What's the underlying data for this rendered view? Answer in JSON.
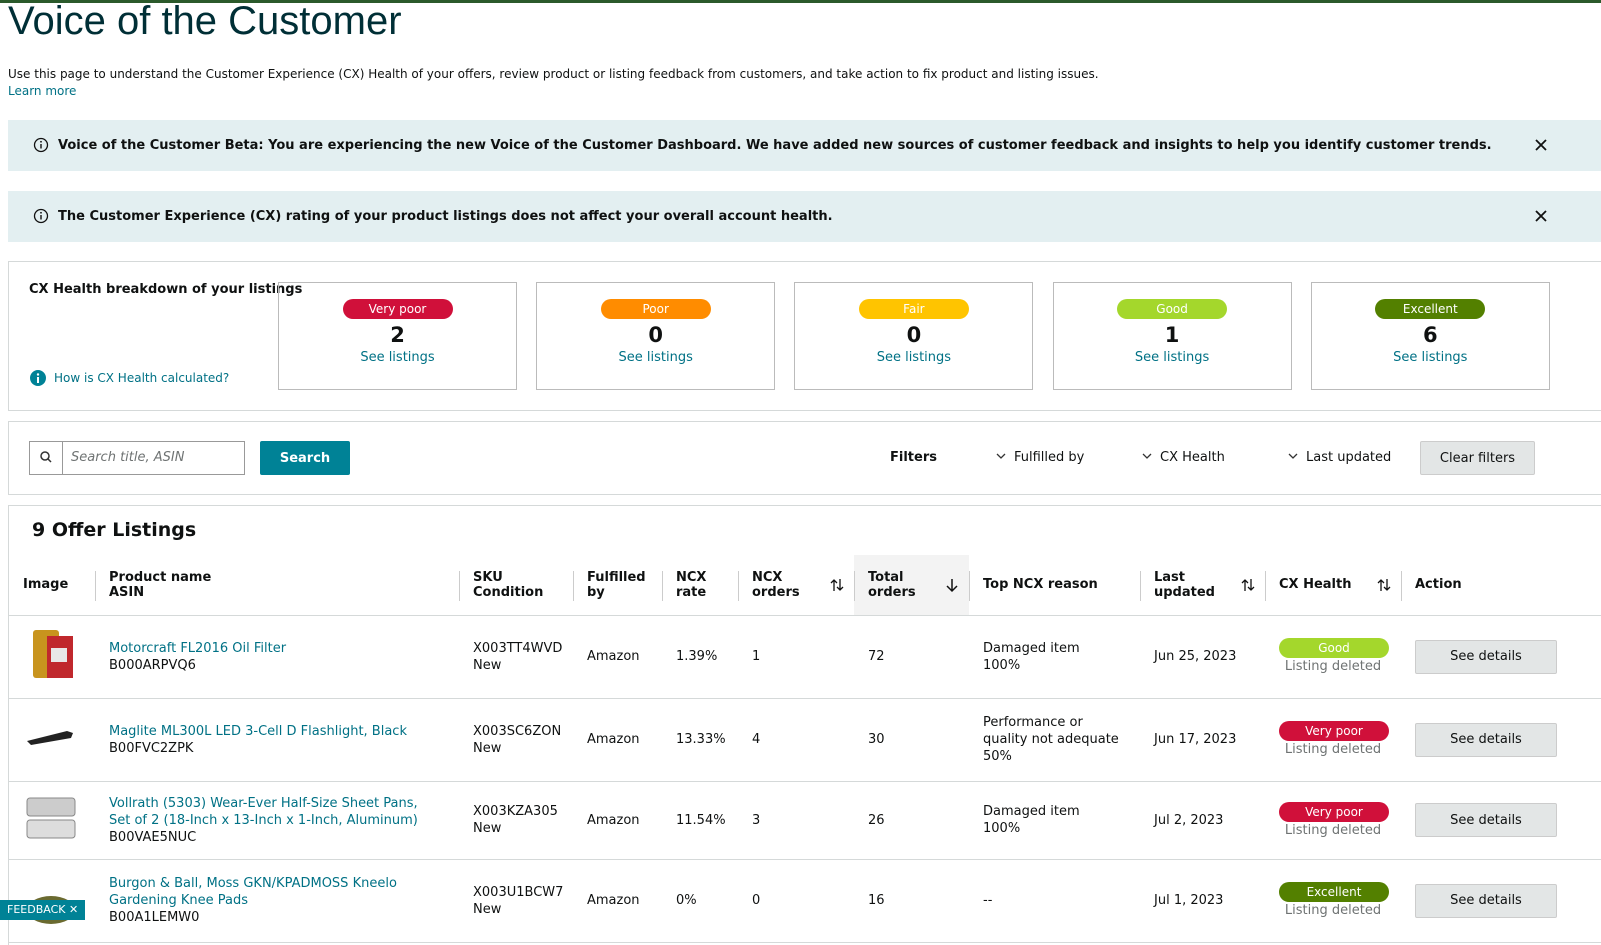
{
  "header": {
    "title": "Voice of the Customer",
    "description": "Use this page to understand the Customer Experience (CX) Health of your offers, review product or listing feedback from customers, and take action to fix product and listing issues.",
    "learn_more": "Learn more"
  },
  "banners": [
    {
      "text": "Voice of the Customer Beta: You are experiencing the new Voice of the Customer Dashboard. We have added new sources of customer feedback and insights to help you identify customer trends."
    },
    {
      "text": "The Customer Experience (CX) rating of your product listings does not affect your overall account health."
    }
  ],
  "cx_health": {
    "title": "CX Health breakdown of your listings",
    "help": "How is CX Health calculated?",
    "cards": [
      {
        "label": "Very poor",
        "count": 2,
        "link": "See listings",
        "color": "#d0103a"
      },
      {
        "label": "Poor",
        "count": 0,
        "link": "See listings",
        "color": "#ff8c00"
      },
      {
        "label": "Fair",
        "count": 0,
        "link": "See listings",
        "color": "#ffc400"
      },
      {
        "label": "Good",
        "count": 1,
        "link": "See listings",
        "color": "#a4d72c"
      },
      {
        "label": "Excellent",
        "count": 6,
        "link": "See listings",
        "color": "#538000"
      }
    ]
  },
  "search": {
    "placeholder": "Search title, ASIN",
    "button": "Search",
    "filters_label": "Filters",
    "filters": [
      "Fulfilled by",
      "CX Health",
      "Last updated"
    ],
    "clear": "Clear filters"
  },
  "listings": {
    "title": "9 Offer Listings",
    "columns": [
      {
        "lines": [
          "Image"
        ]
      },
      {
        "lines": [
          "Product name",
          "ASIN"
        ]
      },
      {
        "lines": [
          "SKU",
          "Condition"
        ]
      },
      {
        "lines": [
          "Fulfilled by"
        ]
      },
      {
        "lines": [
          "NCX rate"
        ]
      },
      {
        "lines": [
          "NCX",
          "orders"
        ],
        "sort": "both"
      },
      {
        "lines": [
          "Total",
          "orders"
        ],
        "sort": "desc"
      },
      {
        "lines": [
          "Top NCX reason"
        ]
      },
      {
        "lines": [
          "Last",
          "updated"
        ],
        "sort": "both"
      },
      {
        "lines": [
          "CX Health"
        ],
        "sort": "both"
      },
      {
        "lines": [
          "Action"
        ]
      }
    ],
    "rows": [
      {
        "product_name": "Motorcraft FL2016 Oil Filter",
        "asin": "B000ARPVQ6",
        "sku": "X003TT4WVD",
        "condition": "New",
        "fulfilled_by": "Amazon",
        "ncx_rate": "1.39%",
        "ncx_orders": 1,
        "total_orders": 72,
        "top_ncx_reason": "Damaged item",
        "top_ncx_share": "100%",
        "last_updated": "Jun 25, 2023",
        "cx_health": "Good",
        "status": "Listing deleted",
        "action": "See details"
      },
      {
        "product_name": "Maglite ML300L LED 3-Cell D Flashlight, Black",
        "asin": "B00FVC2ZPK",
        "sku": "X003SC6ZON",
        "condition": "New",
        "fulfilled_by": "Amazon",
        "ncx_rate": "13.33%",
        "ncx_orders": 4,
        "total_orders": 30,
        "top_ncx_reason": "Performance or quality not adequate",
        "top_ncx_share": "50%",
        "last_updated": "Jun 17, 2023",
        "cx_health": "Very poor",
        "status": "Listing deleted",
        "action": "See details"
      },
      {
        "product_name": "Vollrath (5303) Wear-Ever Half-Size Sheet Pans, Set of 2 (18-Inch x 13-Inch x 1-Inch, Aluminum)",
        "asin": "B00VAE5NUC",
        "sku": "X003KZA305",
        "condition": "New",
        "fulfilled_by": "Amazon",
        "ncx_rate": "11.54%",
        "ncx_orders": 3,
        "total_orders": 26,
        "top_ncx_reason": "Damaged item",
        "top_ncx_share": "100%",
        "last_updated": "Jul 2, 2023",
        "cx_health": "Very poor",
        "status": "Listing deleted",
        "action": "See details"
      },
      {
        "product_name": "Burgon & Ball, Moss GKN/KPADMOSS Kneelo Gardening Knee Pads",
        "asin": "B00A1LEMW0",
        "sku": "X003U1BCW7",
        "condition": "New",
        "fulfilled_by": "Amazon",
        "ncx_rate": "0%",
        "ncx_orders": 0,
        "total_orders": 16,
        "top_ncx_reason": "--",
        "last_updated": "Jul 1, 2023",
        "cx_health": "Excellent",
        "status": "Listing deleted",
        "action": "See details"
      }
    ]
  },
  "feedback": "FEEDBACK"
}
